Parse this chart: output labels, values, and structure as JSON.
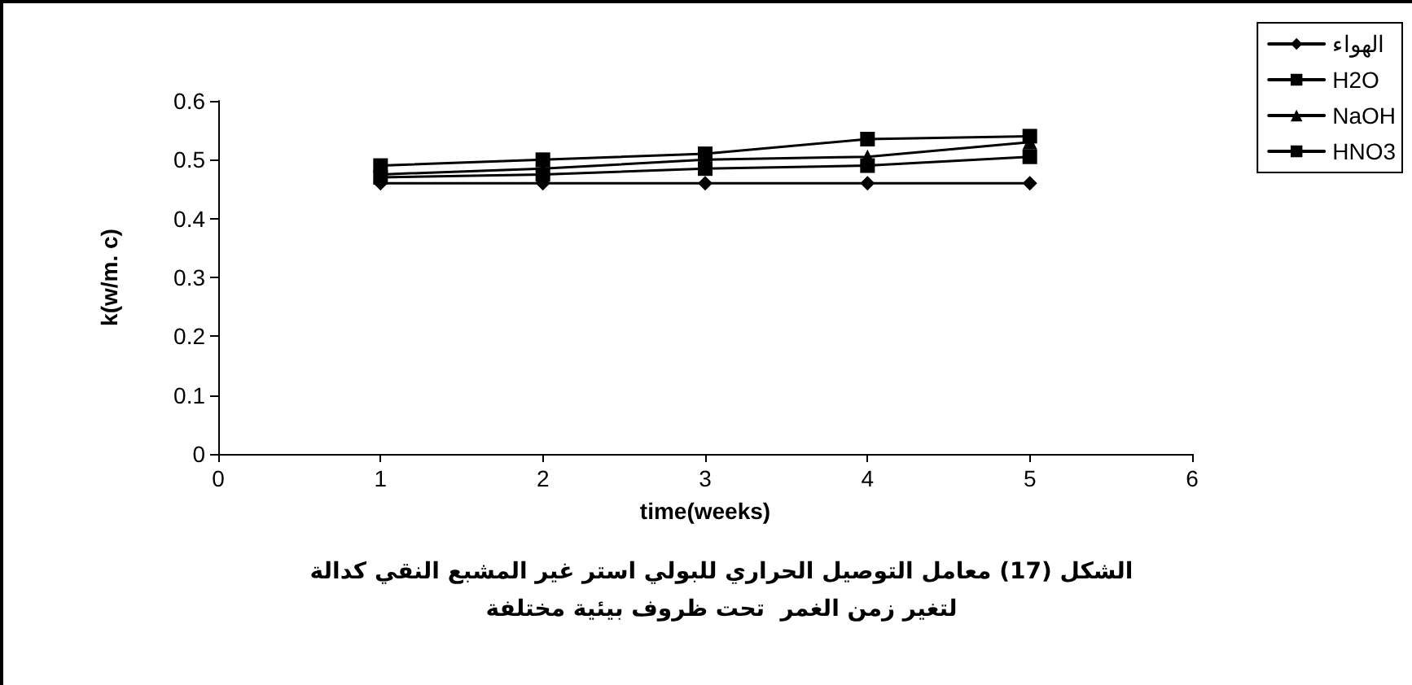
{
  "chart_data": {
    "type": "line",
    "title": "الشكل (17) معامل التوصيل الحراري للبولي استر غير المشبع النقي كدالة\nلتغير زمن الغمر  تحت ظروف بيئية مختلفة",
    "xlabel": "time(weeks)",
    "ylabel": "k(w/m. c)",
    "x": [
      1,
      2,
      3,
      4,
      5
    ],
    "series": [
      {
        "name": "الهواء",
        "color": "#000000",
        "marker": "diamond",
        "values": [
          0.46,
          0.46,
          0.46,
          0.46,
          0.46
        ]
      },
      {
        "name": "H2O",
        "color": "#000000",
        "marker": "square",
        "values": [
          0.47,
          0.475,
          0.485,
          0.49,
          0.505
        ]
      },
      {
        "name": "NaOH",
        "color": "#000000",
        "marker": "triangle",
        "values": [
          0.475,
          0.485,
          0.5,
          0.505,
          0.53
        ]
      },
      {
        "name": "HNO3",
        "color": "#000000",
        "marker": "square",
        "values": [
          0.49,
          0.5,
          0.51,
          0.535,
          0.54
        ]
      }
    ],
    "xlim": [
      0,
      6
    ],
    "xticks": [
      0,
      1,
      2,
      3,
      4,
      5,
      6
    ],
    "ylim": [
      0,
      0.6
    ],
    "yticks": [
      0,
      0.1,
      0.2,
      0.3,
      0.4,
      0.5,
      0.6
    ],
    "grid": false,
    "legend": "right",
    "line_style": "solid"
  }
}
